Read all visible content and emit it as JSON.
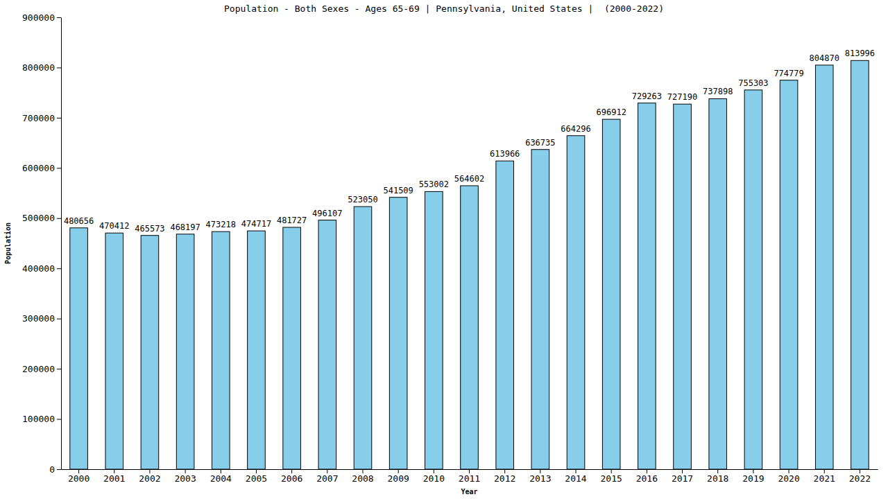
{
  "chart_data": {
    "type": "bar",
    "title": "Population - Both Sexes - Ages 65-69 | Pennsylvania, United States |  (2000-2022)",
    "x_label": "Year",
    "y_label": "Population",
    "categories": [
      "2000",
      "2001",
      "2002",
      "2003",
      "2004",
      "2005",
      "2006",
      "2007",
      "2008",
      "2009",
      "2010",
      "2011",
      "2012",
      "2013",
      "2014",
      "2015",
      "2016",
      "2017",
      "2018",
      "2019",
      "2020",
      "2021",
      "2022"
    ],
    "values": [
      480656,
      470412,
      465573,
      468197,
      473218,
      474717,
      481727,
      496107,
      523050,
      541509,
      553002,
      564602,
      613966,
      636735,
      664296,
      696912,
      729263,
      727190,
      737898,
      755303,
      774779,
      804870,
      813996
    ],
    "color": "#87ceeb",
    "ylim": [
      0,
      900000
    ],
    "yticks": [
      0,
      100000,
      200000,
      300000,
      400000,
      500000,
      600000,
      700000,
      800000,
      900000
    ],
    "grid": false,
    "data_labels": true
  }
}
